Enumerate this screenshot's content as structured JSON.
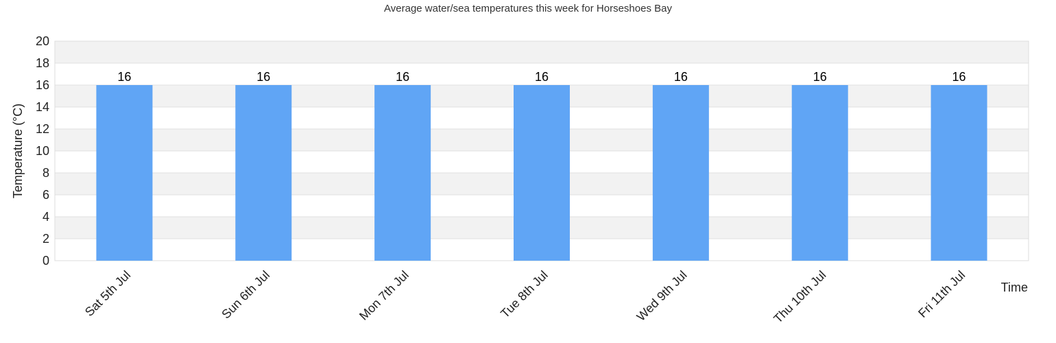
{
  "chart_data": {
    "type": "bar",
    "title": "Average water/sea temperatures this week for Horseshoes Bay",
    "xlabel": "Time",
    "ylabel": "Temperature (°C)",
    "categories": [
      "Sat 5th Jul",
      "Sun 6th Jul",
      "Mon 7th Jul",
      "Tue 8th Jul",
      "Wed 9th Jul",
      "Thu 10th Jul",
      "Fri 11th Jul"
    ],
    "values": [
      16,
      16,
      16,
      16,
      16,
      16,
      16
    ],
    "data_labels": [
      "16",
      "16",
      "16",
      "16",
      "16",
      "16",
      "16"
    ],
    "ylim": [
      0,
      20
    ],
    "yticks": [
      "0",
      "2",
      "4",
      "6",
      "8",
      "10",
      "12",
      "14",
      "16",
      "18",
      "20"
    ],
    "grid": true,
    "legend": false,
    "colors": {
      "bar": "#60a5f5",
      "band_alt": "#f2f2f2",
      "gridline": "#e0e0e0"
    }
  }
}
